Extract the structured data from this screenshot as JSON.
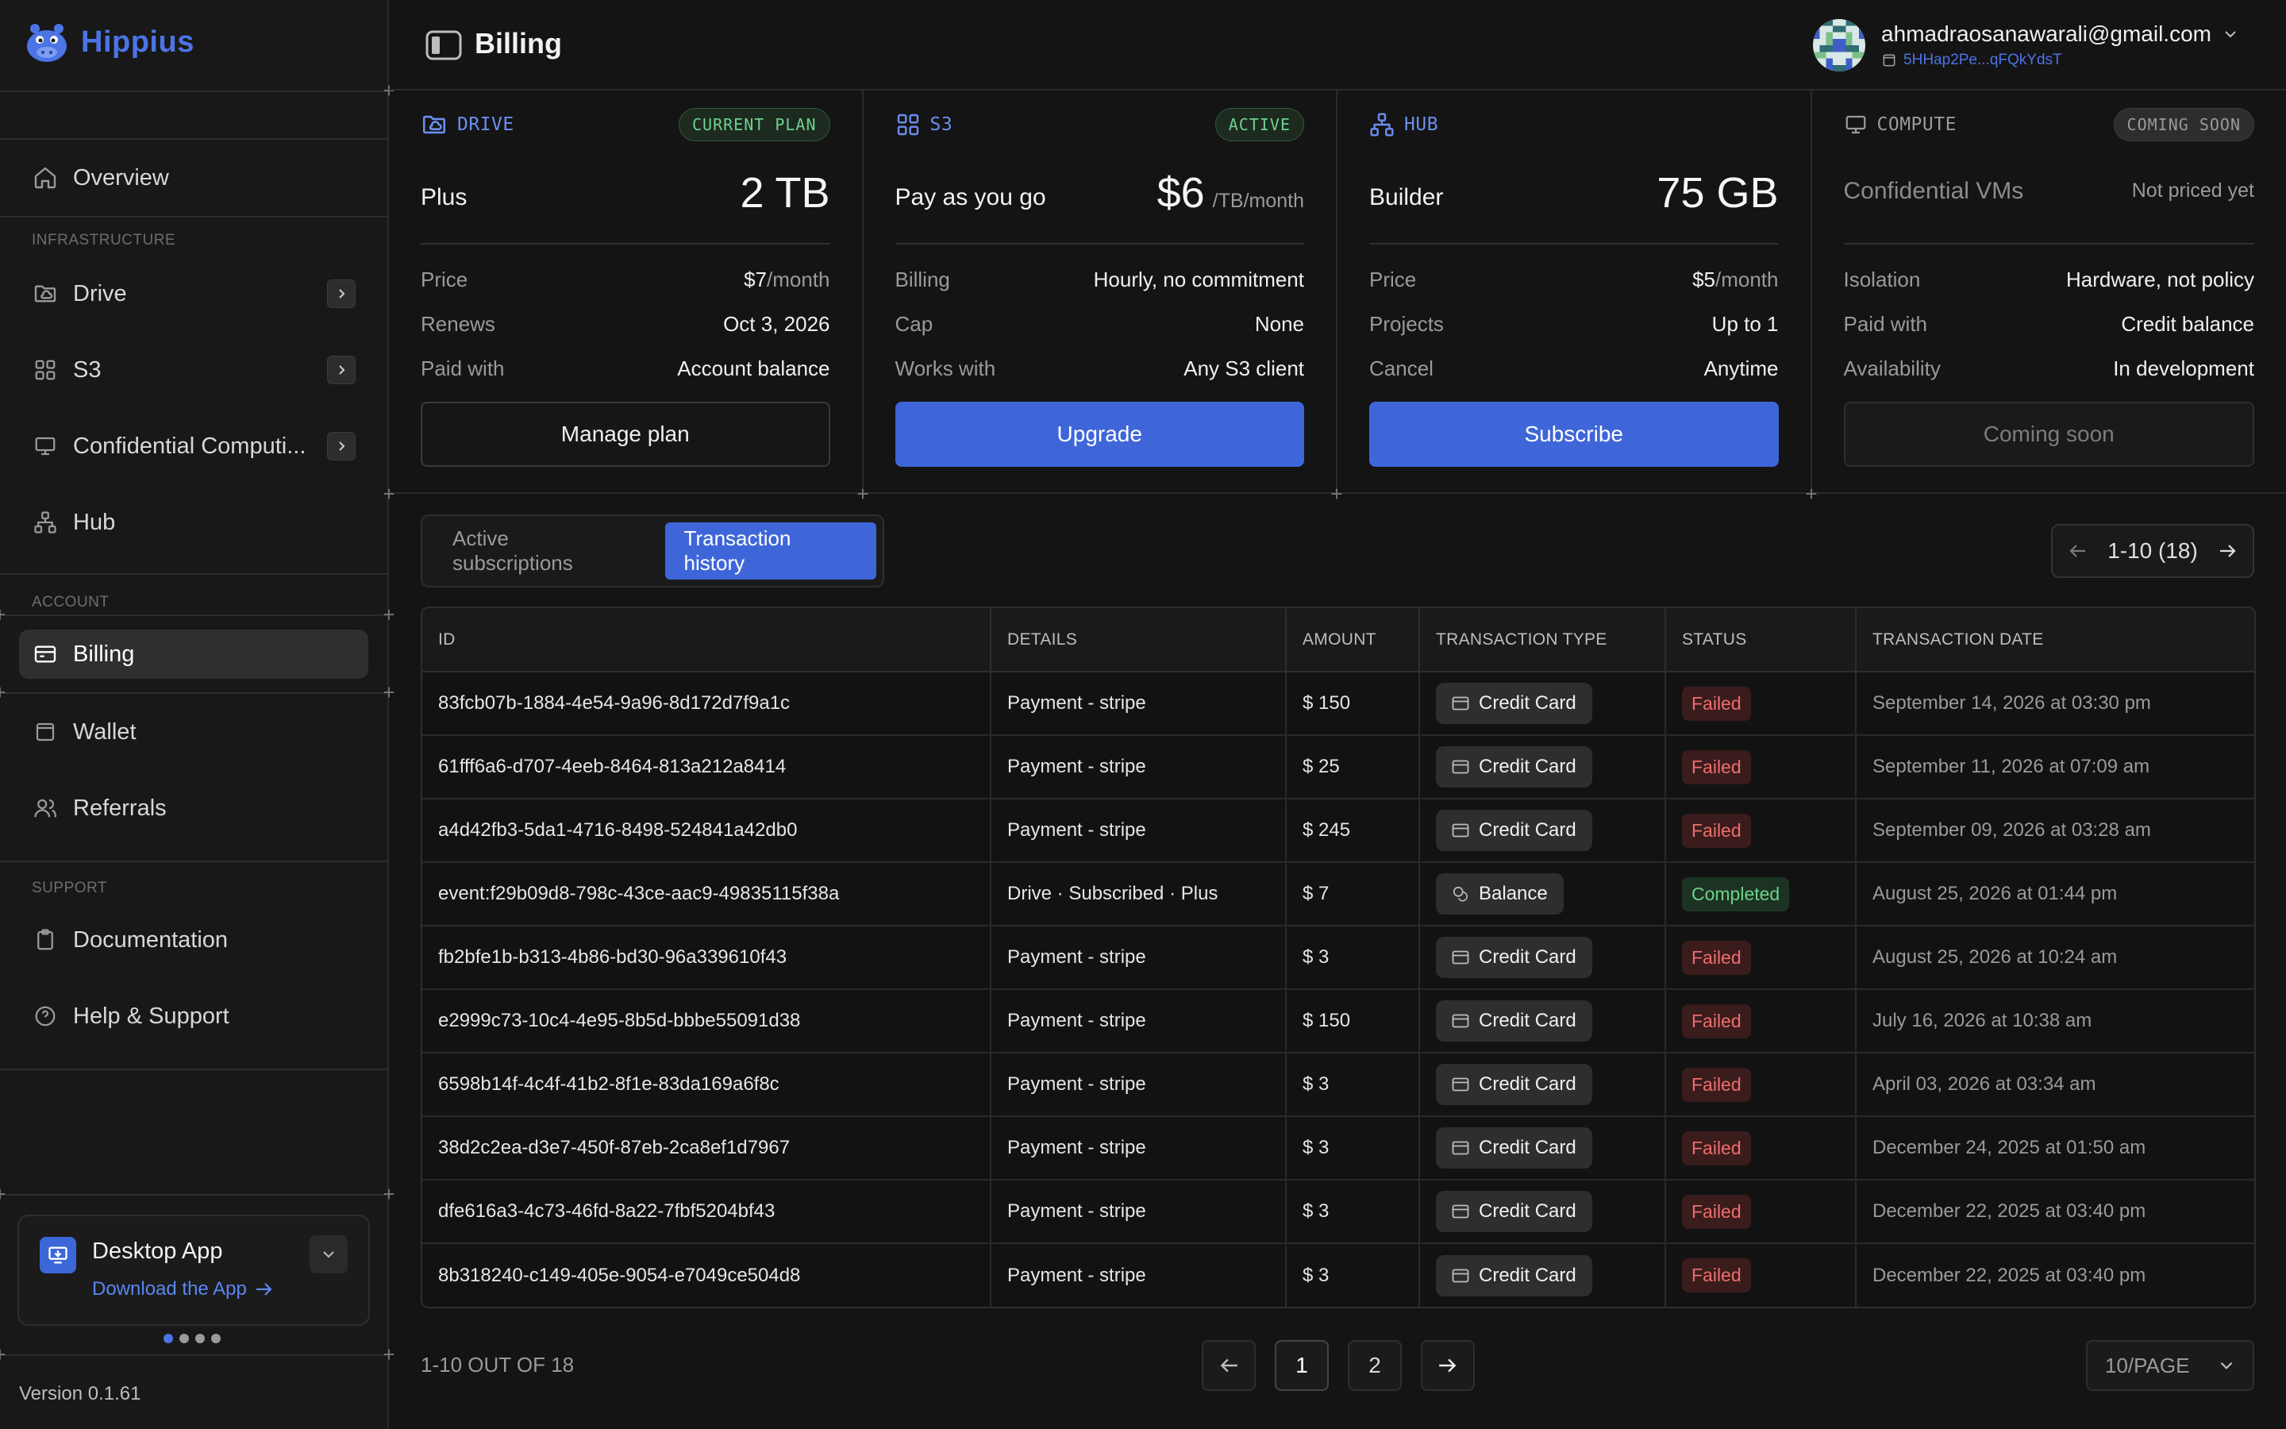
{
  "app": {
    "name": "Hippius",
    "version": "Version 0.1.61"
  },
  "sidebar": {
    "items": [
      {
        "label": "Overview"
      },
      {
        "label": "Drive"
      },
      {
        "label": "S3"
      },
      {
        "label": "Confidential Computi..."
      },
      {
        "label": "Hub"
      },
      {
        "label": "Billing"
      },
      {
        "label": "Wallet"
      },
      {
        "label": "Referrals"
      },
      {
        "label": "Documentation"
      },
      {
        "label": "Help & Support"
      }
    ],
    "sections": {
      "infrastructure": "INFRASTRUCTURE",
      "account": "ACCOUNT",
      "support": "SUPPORT"
    },
    "desktop_app": {
      "title": "Desktop App",
      "link": "Download the App"
    }
  },
  "header": {
    "title": "Billing",
    "email": "ahmadraosanawarali@gmail.com",
    "wallet": "5HHap2Pe...qFQkYdsT"
  },
  "plans": [
    {
      "name": "DRIVE",
      "badge": "CURRENT PLAN",
      "tier": "Plus",
      "amount": "2 TB",
      "rows": [
        {
          "k": "Price",
          "v": "$7",
          "sub": "/month"
        },
        {
          "k": "Renews",
          "v": "Oct 3, 2026"
        },
        {
          "k": "Paid with",
          "v": "Account balance"
        }
      ],
      "button": "Manage plan"
    },
    {
      "name": "S3",
      "badge": "ACTIVE",
      "tier": "Pay as you go",
      "amount": "$6",
      "amount_unit": "/TB/month",
      "rows": [
        {
          "k": "Billing",
          "v": "Hourly, no commitment"
        },
        {
          "k": "Cap",
          "v": "None"
        },
        {
          "k": "Works with",
          "v": "Any S3 client"
        }
      ],
      "button": "Upgrade"
    },
    {
      "name": "HUB",
      "tier": "Builder",
      "amount": "75 GB",
      "rows": [
        {
          "k": "Price",
          "v": "$5",
          "sub": "/month"
        },
        {
          "k": "Projects",
          "v": "Up to 1"
        },
        {
          "k": "Cancel",
          "v": "Anytime"
        }
      ],
      "button": "Subscribe"
    },
    {
      "name": "COMPUTE",
      "badge": "COMING SOON",
      "tier": "Confidential VMs",
      "amount": "Not priced yet",
      "rows": [
        {
          "k": "Isolation",
          "v": "Hardware, not policy"
        },
        {
          "k": "Paid with",
          "v": "Credit balance"
        },
        {
          "k": "Availability",
          "v": "In development"
        }
      ],
      "button": "Coming soon"
    }
  ],
  "tabs": {
    "active_subscriptions": "Active subscriptions",
    "transaction_history": "Transaction history",
    "selected": "Transaction history"
  },
  "pager_top": "1-10 (18)",
  "table": {
    "headers": [
      "ID",
      "DETAILS",
      "AMOUNT",
      "TRANSACTION TYPE",
      "STATUS",
      "TRANSACTION DATE"
    ],
    "rows": [
      {
        "id": "83fcb07b-1884-4e54-9a96-8d172d7f9a1c",
        "details": "Payment - stripe",
        "amount": "$ 150",
        "type": "Credit Card",
        "type_icon": "credit-card-icon",
        "status": "Failed",
        "date": "September 14, 2026 at 03:30 pm"
      },
      {
        "id": "61fff6a6-d707-4eeb-8464-813a212a8414",
        "details": "Payment - stripe",
        "amount": "$ 25",
        "type": "Credit Card",
        "type_icon": "credit-card-icon",
        "status": "Failed",
        "date": "September 11, 2026 at 07:09 am"
      },
      {
        "id": "a4d42fb3-5da1-4716-8498-524841a42db0",
        "details": "Payment - stripe",
        "amount": "$ 245",
        "type": "Credit Card",
        "type_icon": "credit-card-icon",
        "status": "Failed",
        "date": "September 09, 2026 at 03:28 am"
      },
      {
        "id": "event:f29b09d8-798c-43ce-aac9-49835115f38a",
        "details": "Drive · Subscribed · Plus",
        "amount": "$ 7",
        "type": "Balance",
        "type_icon": "coins-icon",
        "status": "Completed",
        "date": "August 25, 2026 at 01:44 pm"
      },
      {
        "id": "fb2bfe1b-b313-4b86-bd30-96a339610f43",
        "details": "Payment - stripe",
        "amount": "$ 3",
        "type": "Credit Card",
        "type_icon": "credit-card-icon",
        "status": "Failed",
        "date": "August 25, 2026 at 10:24 am"
      },
      {
        "id": "e2999c73-10c4-4e95-8b5d-bbbe55091d38",
        "details": "Payment - stripe",
        "amount": "$ 150",
        "type": "Credit Card",
        "type_icon": "credit-card-icon",
        "status": "Failed",
        "date": "July 16, 2026 at 10:38 am"
      },
      {
        "id": "6598b14f-4c4f-41b2-8f1e-83da169a6f8c",
        "details": "Payment - stripe",
        "amount": "$ 3",
        "type": "Credit Card",
        "type_icon": "credit-card-icon",
        "status": "Failed",
        "date": "April 03, 2026 at 03:34 am"
      },
      {
        "id": "38d2c2ea-d3e7-450f-87eb-2ca8ef1d7967",
        "details": "Payment - stripe",
        "amount": "$ 3",
        "type": "Credit Card",
        "type_icon": "credit-card-icon",
        "status": "Failed",
        "date": "December 24, 2025 at 01:50 am"
      },
      {
        "id": "dfe616a3-4c73-46fd-8a22-7fbf5204bf43",
        "details": "Payment - stripe",
        "amount": "$ 3",
        "type": "Credit Card",
        "type_icon": "credit-card-icon",
        "status": "Failed",
        "date": "December 22, 2025 at 03:40 pm"
      },
      {
        "id": "8b318240-c149-405e-9054-e7049ce504d8",
        "details": "Payment - stripe",
        "amount": "$ 3",
        "type": "Credit Card",
        "type_icon": "credit-card-icon",
        "status": "Failed",
        "date": "December 22, 2025 at 03:40 pm"
      }
    ]
  },
  "pagination": {
    "summary": "1-10 OUT OF 18",
    "pages": [
      "1",
      "2"
    ],
    "current": "1",
    "per_page": "10/PAGE"
  },
  "colors": {
    "accent": "#3f66d9",
    "failed": "#ef6d6d",
    "completed": "#6fd08c"
  }
}
